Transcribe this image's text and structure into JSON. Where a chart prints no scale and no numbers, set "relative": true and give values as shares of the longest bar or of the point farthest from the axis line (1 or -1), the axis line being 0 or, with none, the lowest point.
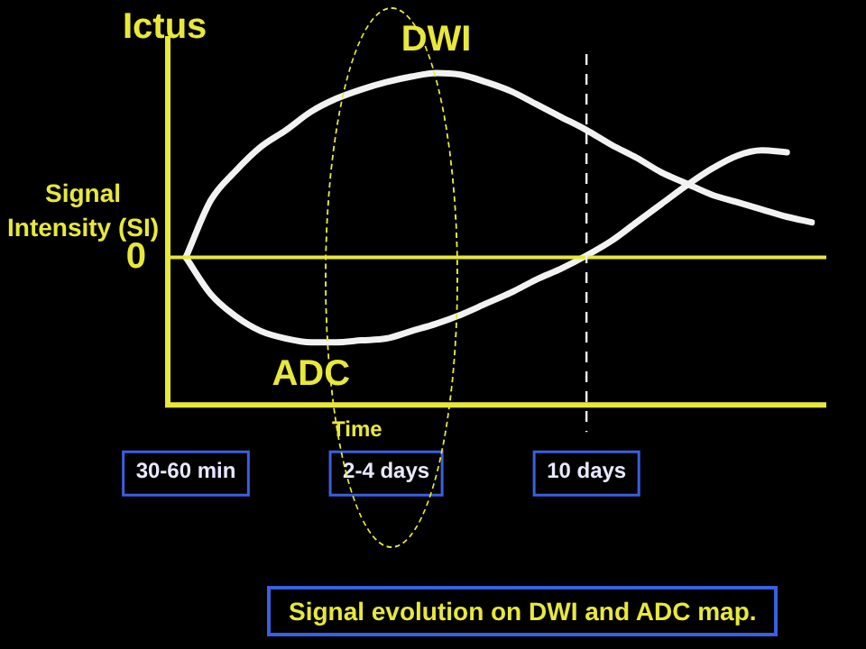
{
  "chart_data": {
    "type": "line",
    "relative": true,
    "xlabel": "Time",
    "ylabel": "Signal Intensity (SI)",
    "categories": [
      "30-60 min",
      null,
      null,
      null,
      null,
      null,
      null,
      null,
      "2-4 days",
      null,
      null,
      null,
      null,
      null,
      null,
      null,
      "10 days",
      null,
      null,
      null,
      null,
      null,
      null,
      null,
      null,
      null
    ],
    "series": [
      {
        "name": "DWI",
        "color": "#f2f2f2",
        "values": [
          0,
          0.31,
          0.47,
          0.6,
          0.69,
          0.79,
          0.86,
          0.91,
          0.95,
          0.98,
          1,
          0.99,
          0.95,
          0.9,
          0.83,
          0.76,
          0.69,
          0.61,
          0.54,
          0.46,
          0.4,
          0.34,
          0.3,
          0.26,
          0.22,
          0.19
        ]
      },
      {
        "name": "ADC",
        "color": "#f2f2f2",
        "values": [
          0,
          -0.2,
          -0.32,
          -0.4,
          -0.44,
          -0.46,
          -0.46,
          -0.45,
          -0.44,
          -0.4,
          -0.36,
          -0.31,
          -0.25,
          -0.19,
          -0.12,
          -0.06,
          0.01,
          0.09,
          0.19,
          0.29,
          0.39,
          0.48,
          0.55,
          0.58,
          0.57,
          null
        ]
      }
    ],
    "ref_lines": [
      {
        "axis": "y",
        "value": 0,
        "label": "0",
        "color": "#e8e83a"
      },
      {
        "axis": "x",
        "value": "10 days",
        "color": "#f2f2f2",
        "line_style": "dashed"
      }
    ],
    "annotations": [
      "Ictus",
      "Signal evolution on DWI and ADC map."
    ],
    "grid": false,
    "legend": false,
    "marker": "none",
    "line_style": "solid"
  }
}
